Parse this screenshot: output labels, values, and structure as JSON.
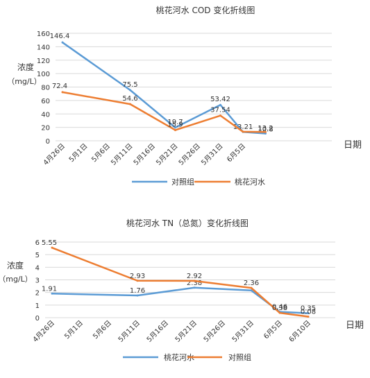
{
  "colors": {
    "blue": "#5B9BD5",
    "orange": "#ED7D31",
    "grid": "#D9D9D9",
    "text": "#333333"
  },
  "chart_data": [
    {
      "type": "line",
      "title": "桃花河水 COD 变化折线图",
      "ylabel": "浓度（mg/L）",
      "xlabel": "日期",
      "ylim": [
        0,
        160
      ],
      "yticks": [
        "0",
        "20",
        "40",
        "60",
        "80",
        "100",
        "120",
        "140",
        "160"
      ],
      "categories": [
        "4月26日",
        "5月1日",
        "5月6日",
        "5月11日",
        "5月16日",
        "5月21日",
        "5月26日",
        "5月31日",
        "6月5日",
        ""
      ],
      "grid": true,
      "legend_position": "bottom",
      "series": [
        {
          "name": "对照组",
          "color": "#5B9BD5",
          "points": [
            [
              0,
              146.4
            ],
            [
              3,
              75.5
            ],
            [
              5,
              19.7
            ],
            [
              7,
              53.42
            ],
            [
              8,
              13.21
            ],
            [
              9,
              10.8
            ]
          ],
          "labels": [
            "146.4",
            "75.5",
            "19.7",
            "53.42",
            "13.21",
            "10.8"
          ]
        },
        {
          "name": "桃花河水",
          "color": "#ED7D31",
          "points": [
            [
              0,
              72.4
            ],
            [
              3,
              54.6
            ],
            [
              5,
              15.9
            ],
            [
              7,
              37.54
            ],
            [
              8,
              13.5
            ],
            [
              9,
              13.2
            ]
          ],
          "labels": [
            "72.4",
            "54.6",
            "15.9",
            "37.54",
            "",
            "13.2"
          ]
        }
      ]
    },
    {
      "type": "line",
      "title": "桃花河水 TN（总氮）变化折线图",
      "ylabel": "浓度（mg/L）",
      "xlabel": "日期",
      "ylim": [
        0,
        6
      ],
      "yticks": [
        "0",
        "1",
        "2",
        "3",
        "4",
        "5",
        "6"
      ],
      "categories": [
        "4月26日",
        "5月1日",
        "5月6日",
        "5月11日",
        "5月16日",
        "5月21日",
        "5月26日",
        "5月31日",
        "6月5日",
        "6月10日"
      ],
      "grid": true,
      "legend_position": "bottom",
      "series": [
        {
          "name": "桃花河水",
          "color": "#5B9BD5",
          "points": [
            [
              0,
              1.91
            ],
            [
              3,
              1.76
            ],
            [
              5,
              2.38
            ],
            [
              7,
              2.16
            ],
            [
              8,
              0.46
            ],
            [
              9,
              0.35
            ]
          ],
          "labels": [
            "1.91",
            "1.76",
            "2.38",
            "",
            "0.46",
            "0.35"
          ]
        },
        {
          "name": "对照组",
          "color": "#ED7D31",
          "points": [
            [
              0,
              5.55
            ],
            [
              3,
              2.93
            ],
            [
              5,
              2.92
            ],
            [
              7,
              2.36
            ],
            [
              8,
              0.38
            ],
            [
              9,
              0.08
            ]
          ],
          "labels": [
            "5.55",
            "2.93",
            "2.92",
            "2.36",
            "0.38",
            "0.08"
          ]
        }
      ]
    }
  ]
}
